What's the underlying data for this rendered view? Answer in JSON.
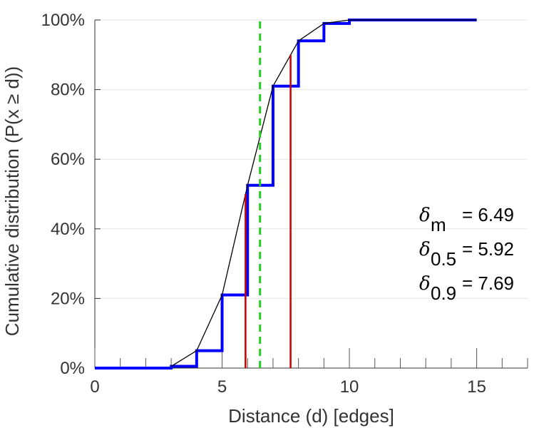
{
  "chart_data": {
    "type": "line",
    "xlabel": "Distance (d) [edges]",
    "ylabel": "Cumulative distribution (P(x ≥ d))",
    "xlim": [
      0,
      17
    ],
    "ylim": [
      0,
      100
    ],
    "x_ticks": [
      0,
      5,
      10,
      15
    ],
    "x_tick_labels": [
      "0",
      "5",
      "10",
      "15"
    ],
    "y_ticks": [
      0,
      20,
      40,
      60,
      80,
      100
    ],
    "y_tick_labels": [
      "0%",
      "20%",
      "40%",
      "60%",
      "80%",
      "100%"
    ],
    "grid": "horizontal",
    "series": [
      {
        "kind": "step",
        "color": "#0000ff",
        "x": [
          0,
          1,
          2,
          3,
          4,
          5,
          6,
          7,
          8,
          9,
          10,
          11,
          12,
          13,
          14,
          15
        ],
        "values": [
          0,
          0,
          0,
          0.5,
          5,
          21,
          52.5,
          81,
          94,
          99,
          100,
          100,
          100,
          100,
          100,
          100
        ]
      },
      {
        "kind": "line",
        "color": "#000000",
        "x": [
          3,
          4,
          5,
          6,
          7,
          8,
          9,
          10,
          11,
          12,
          13,
          14,
          15
        ],
        "values": [
          0.5,
          5,
          21,
          52.5,
          81,
          94,
          99,
          100,
          100,
          100,
          100,
          100,
          100
        ]
      }
    ],
    "vlines": [
      {
        "x": 6.49,
        "y_top": 100,
        "color": "#22cc22",
        "style": "dashed"
      },
      {
        "x": 5.92,
        "y_top": 50,
        "color": "#cc0000",
        "style": "solid"
      },
      {
        "x": 7.69,
        "y_top": 90,
        "color": "#cc0000",
        "style": "solid"
      }
    ],
    "annotations": [
      {
        "symbol": "δ",
        "subscript": "m",
        "value": "= 6.49"
      },
      {
        "symbol": "δ",
        "subscript": "0.5",
        "value": "= 5.92"
      },
      {
        "symbol": "δ",
        "subscript": "0.9",
        "value": "= 7.69"
      }
    ]
  }
}
